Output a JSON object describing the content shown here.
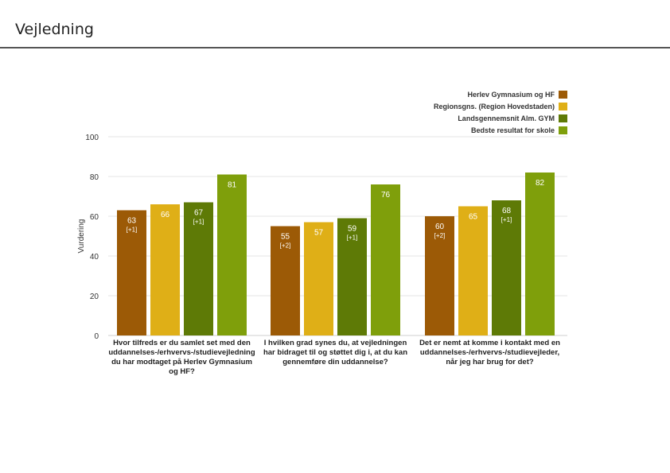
{
  "page": {
    "title": "Vejledning"
  },
  "chart_data": {
    "type": "bar",
    "title": "",
    "ylabel": "Vurdering",
    "xlabel": "",
    "ylim": [
      0,
      100
    ],
    "yticks": [
      "0",
      "20",
      "40",
      "60",
      "80",
      "100"
    ],
    "grid": true,
    "legend_position": "top-right",
    "categories": [
      [
        "Hvor tilfreds er du samlet set med den",
        "uddannelses-/erhvervs-/studievejledning",
        "du har modtaget på Herlev Gymnasium",
        "og HF?"
      ],
      [
        "I hvilken grad synes du, at vejledningen",
        "har bidraget til og støttet dig i, at du kan",
        "gennemføre din uddannelse?"
      ],
      [
        "Det er nemt at komme i kontakt med en",
        "uddannelses-/erhvervs-/studievejleder,",
        "når jeg har brug for det?"
      ]
    ],
    "series": [
      {
        "name": "Herlev Gymnasium og HF",
        "color": "#9c5a06",
        "values": [
          63,
          55,
          60
        ],
        "deltas": [
          "[+1]",
          "[+2]",
          "[+2]"
        ]
      },
      {
        "name": "Regionsgns. (Region Hovedstaden)",
        "color": "#dfaf17",
        "values": [
          66,
          57,
          65
        ],
        "deltas": [
          "",
          "",
          ""
        ]
      },
      {
        "name": "Landsgennemsnit Alm. GYM",
        "color": "#5e7a06",
        "values": [
          67,
          59,
          68
        ],
        "deltas": [
          "[+1]",
          "[+1]",
          "[+1]"
        ]
      },
      {
        "name": "Bedste resultat for skole",
        "color": "#7f9f0b",
        "values": [
          81,
          76,
          82
        ],
        "deltas": [
          "",
          "",
          ""
        ]
      }
    ]
  }
}
